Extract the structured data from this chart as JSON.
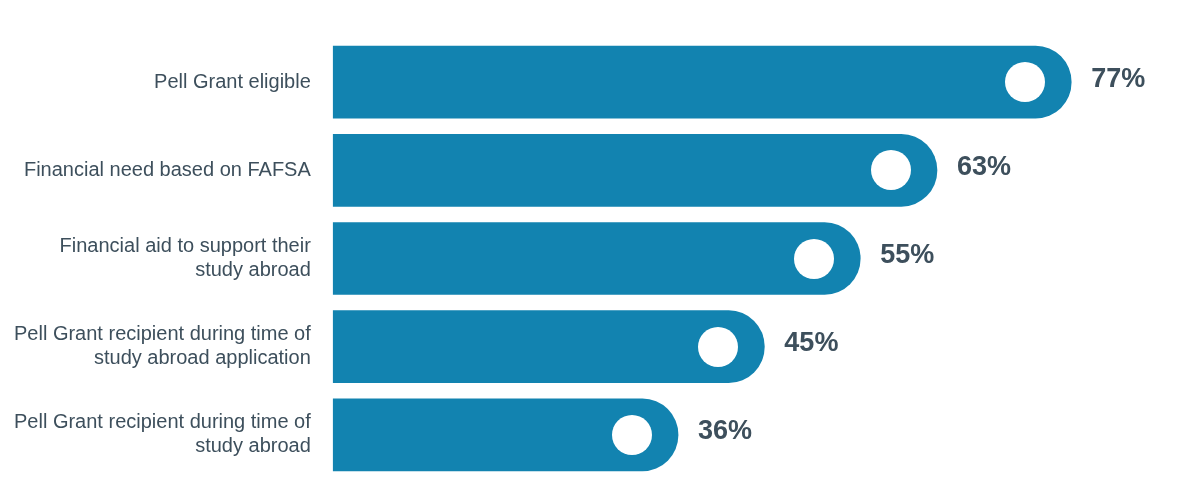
{
  "chart_data": {
    "type": "bar",
    "orientation": "horizontal",
    "categories": [
      "Pell Grant eligible",
      "Financial need based on FAFSA",
      "Financial aid to support their study abroad",
      "Pell Grant recipient during time of study abroad application",
      "Pell Grant recipient during time of study abroad"
    ],
    "values": [
      77,
      63,
      55,
      45,
      36
    ],
    "value_labels": [
      "77%",
      "63%",
      "55%",
      "45%",
      "36%"
    ],
    "color": "#1283b0",
    "tick_labels": "y"
  }
}
